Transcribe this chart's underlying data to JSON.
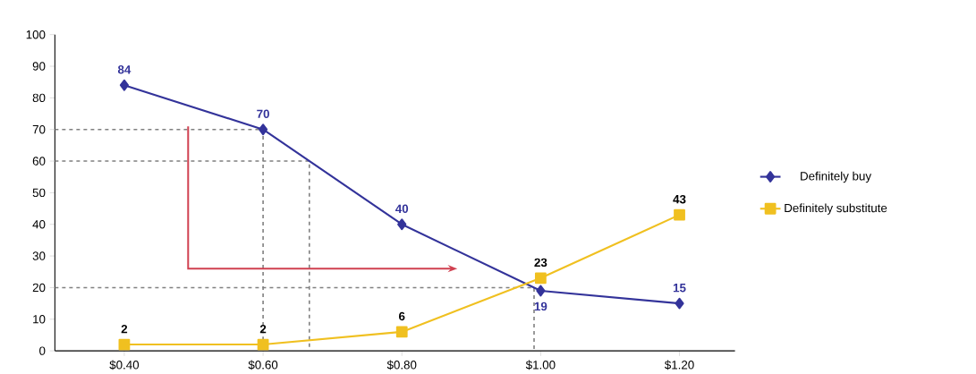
{
  "chart_data": {
    "type": "line",
    "categories": [
      "$0.40",
      "$0.60",
      "$0.80",
      "$1.00",
      "$1.20"
    ],
    "series": [
      {
        "name": "Definitely buy",
        "color": "#33339a",
        "marker": "diamond",
        "values": [
          84,
          70,
          40,
          19,
          15
        ],
        "value_labels": [
          "84",
          "70",
          "40",
          "19",
          "15"
        ]
      },
      {
        "name": "Definitely substitute",
        "color": "#f0c020",
        "marker": "square",
        "values": [
          2,
          2,
          6,
          23,
          43
        ],
        "value_labels": [
          "2",
          "2",
          "6",
          "23",
          "43"
        ]
      }
    ],
    "ylim": [
      0,
      100
    ],
    "yticks": [
      0,
      10,
      20,
      30,
      40,
      50,
      60,
      70,
      80,
      90,
      100
    ],
    "grid": false,
    "legend": "right",
    "ref_lines": [
      {
        "axis": "y",
        "value": 70,
        "color": "#808080",
        "line_style": "dashed"
      },
      {
        "axis": "y",
        "value": 60,
        "color": "#808080",
        "line_style": "dashed"
      },
      {
        "axis": "y",
        "value": 20,
        "color": "#808080",
        "line_style": "dashed"
      }
    ]
  }
}
